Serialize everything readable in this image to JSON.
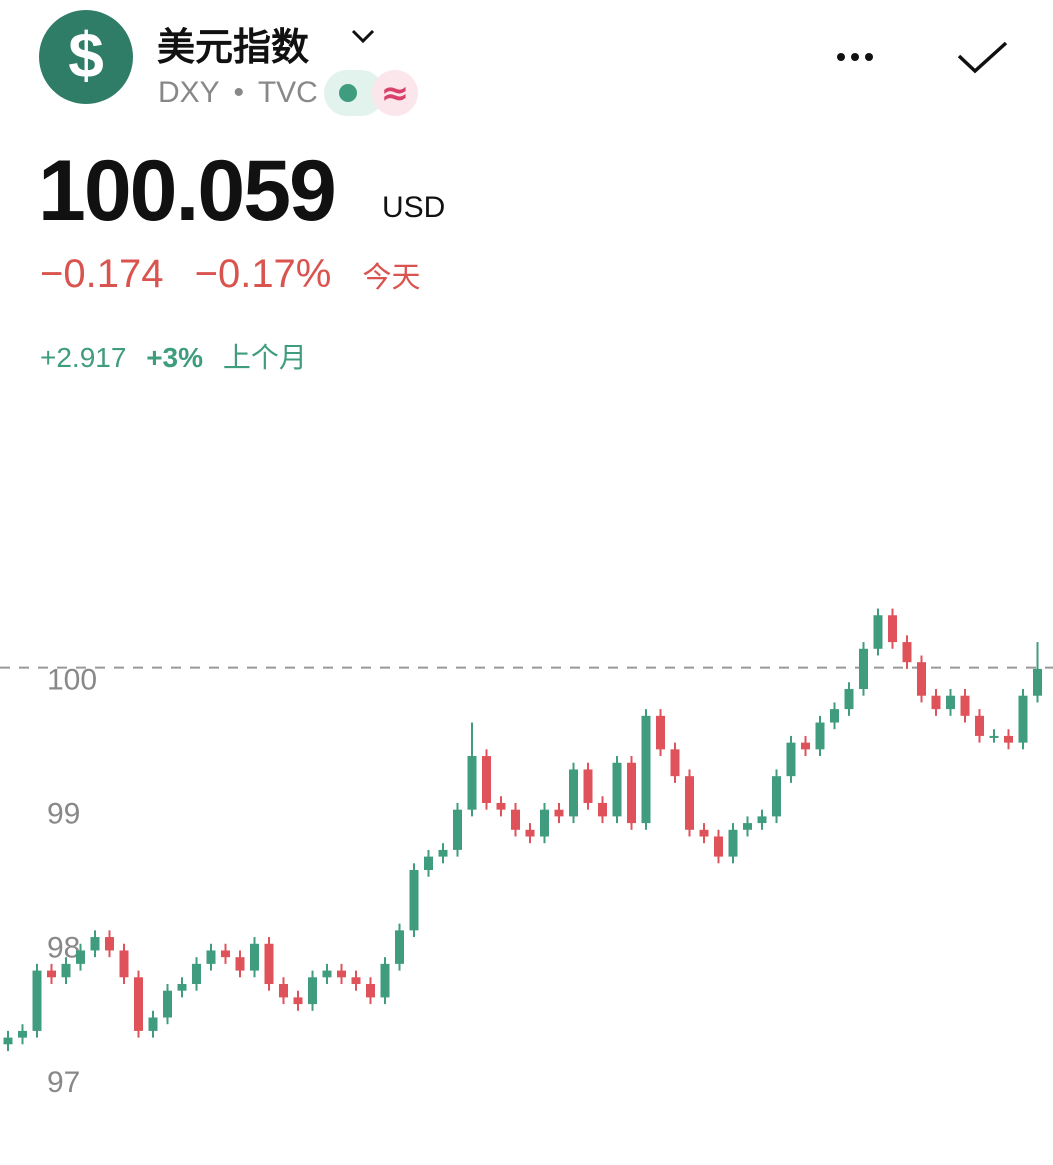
{
  "header": {
    "title": "美元指数",
    "symbol": "DXY",
    "exchange": "TVC",
    "price": "100.059",
    "currency": "USD",
    "change": "−0.174",
    "change_percent": "−0.17%",
    "change_period": "今天",
    "month_change": "+2.917",
    "month_change_percent": "+3%",
    "month_period": "上个月"
  },
  "chart_data": {
    "type": "candlestick",
    "open": [
      97.25,
      97.3,
      97.35,
      97.8,
      97.75,
      97.85,
      97.95,
      98.05,
      97.95,
      97.75,
      97.35,
      97.45,
      97.65,
      97.7,
      97.85,
      97.95,
      97.9,
      97.8,
      98.0,
      97.7,
      97.6,
      97.55,
      97.75,
      97.8,
      97.75,
      97.7,
      97.6,
      97.85,
      98.1,
      98.55,
      98.65,
      98.7,
      99.0,
      99.4,
      99.05,
      99.0,
      98.85,
      98.8,
      99.0,
      98.95,
      99.3,
      99.05,
      98.95,
      99.35,
      98.9,
      99.7,
      99.45,
      99.25,
      98.85,
      98.8,
      98.65,
      98.85,
      98.9,
      98.95,
      99.25,
      99.5,
      99.45,
      99.65,
      99.75,
      99.9,
      100.2,
      100.45,
      100.25,
      100.1,
      99.85,
      99.75,
      99.85,
      99.7,
      99.55,
      99.55,
      99.5,
      99.85
    ],
    "high": [
      97.35,
      97.4,
      97.85,
      97.85,
      97.9,
      98.0,
      98.1,
      98.1,
      98.0,
      97.8,
      97.5,
      97.7,
      97.75,
      97.9,
      98.0,
      98.0,
      97.95,
      98.05,
      98.05,
      97.75,
      97.65,
      97.8,
      97.85,
      97.85,
      97.8,
      97.75,
      97.9,
      98.15,
      98.6,
      98.7,
      98.75,
      99.05,
      99.65,
      99.45,
      99.1,
      99.05,
      98.9,
      99.05,
      99.05,
      99.35,
      99.35,
      99.1,
      99.4,
      99.4,
      99.75,
      99.75,
      99.5,
      99.3,
      98.9,
      98.85,
      98.9,
      98.95,
      99.0,
      99.3,
      99.55,
      99.55,
      99.7,
      99.8,
      99.95,
      100.25,
      100.5,
      100.5,
      100.3,
      100.15,
      99.9,
      99.9,
      99.9,
      99.75,
      99.6,
      99.6,
      99.9,
      100.25
    ],
    "low": [
      97.2,
      97.25,
      97.3,
      97.7,
      97.7,
      97.8,
      97.9,
      97.9,
      97.7,
      97.3,
      97.3,
      97.4,
      97.6,
      97.65,
      97.8,
      97.85,
      97.75,
      97.75,
      97.65,
      97.55,
      97.5,
      97.5,
      97.7,
      97.7,
      97.65,
      97.55,
      97.55,
      97.8,
      98.05,
      98.5,
      98.6,
      98.65,
      98.95,
      99.0,
      98.95,
      98.8,
      98.75,
      98.75,
      98.9,
      98.9,
      99.0,
      98.9,
      98.9,
      98.85,
      98.85,
      99.4,
      99.2,
      98.8,
      98.75,
      98.6,
      98.6,
      98.8,
      98.85,
      98.9,
      99.2,
      99.4,
      99.4,
      99.6,
      99.7,
      99.85,
      100.15,
      100.2,
      100.05,
      99.8,
      99.7,
      99.7,
      99.65,
      99.5,
      99.5,
      99.45,
      99.45,
      99.8
    ],
    "close": [
      97.3,
      97.35,
      97.8,
      97.75,
      97.85,
      97.95,
      98.05,
      97.95,
      97.75,
      97.35,
      97.45,
      97.65,
      97.7,
      97.85,
      97.95,
      97.9,
      97.8,
      98.0,
      97.7,
      97.6,
      97.55,
      97.75,
      97.8,
      97.75,
      97.7,
      97.6,
      97.85,
      98.1,
      98.55,
      98.65,
      98.7,
      99.0,
      99.4,
      99.05,
      99.0,
      98.85,
      98.8,
      99.0,
      98.95,
      99.3,
      99.05,
      98.95,
      99.35,
      98.9,
      99.7,
      99.45,
      99.25,
      98.85,
      98.8,
      98.65,
      98.85,
      98.9,
      98.95,
      99.25,
      99.5,
      99.45,
      99.65,
      99.75,
      99.9,
      100.2,
      100.45,
      100.25,
      100.1,
      99.85,
      99.75,
      99.85,
      99.7,
      99.55,
      99.55,
      99.5,
      99.85,
      100.05
    ],
    "up_color": "#3f9c7f",
    "down_color": "#e0525a",
    "last_price": 100.059,
    "ylim": [
      96.35,
      102.13
    ],
    "yticks": [
      97,
      98,
      99,
      100
    ],
    "grid": false
  }
}
